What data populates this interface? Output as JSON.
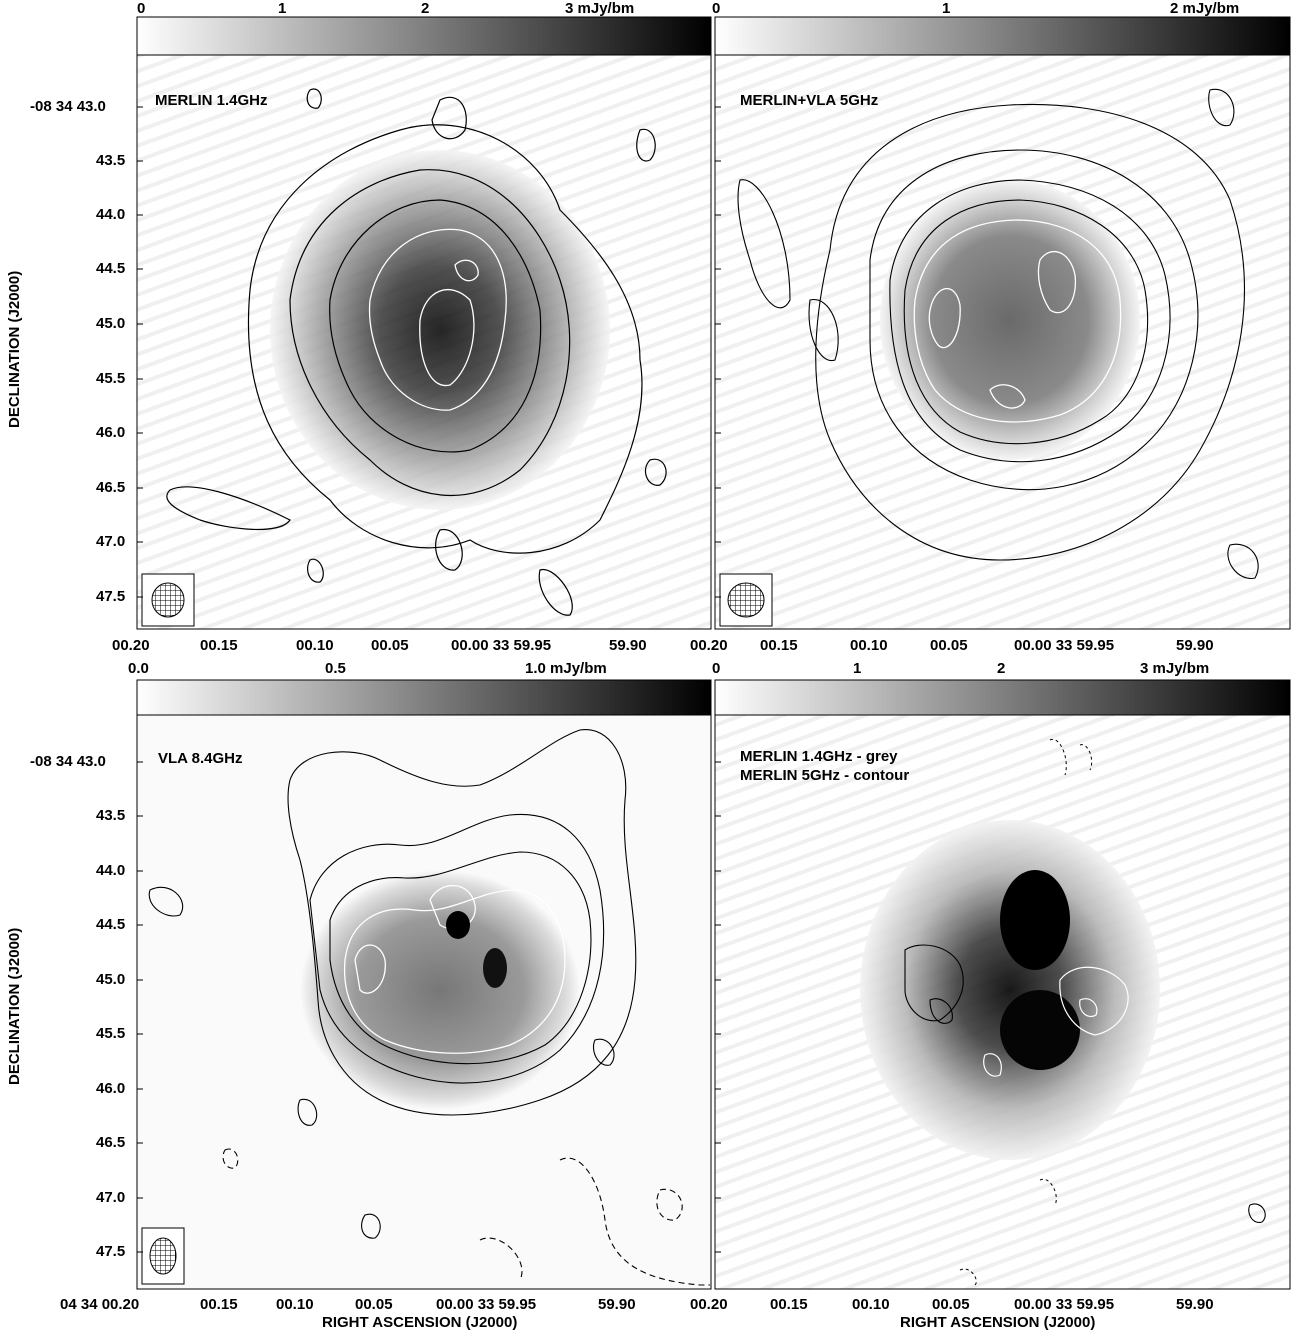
{
  "panels": [
    {
      "id": "tl",
      "title": "MERLIN 1.4GHz",
      "subtitle": "",
      "colorbar": {
        "labels": [
          "0",
          "1",
          "2",
          "3 mJy/bm"
        ]
      }
    },
    {
      "id": "tr",
      "title": "MERLIN+VLA 5GHz",
      "subtitle": "",
      "colorbar": {
        "labels": [
          "0",
          "1",
          "2 mJy/bm"
        ]
      }
    },
    {
      "id": "bl",
      "title": "VLA 8.4GHz",
      "subtitle": "",
      "colorbar": {
        "labels": [
          "0.0",
          "0.5",
          "1.0 mJy/bm"
        ]
      }
    },
    {
      "id": "br",
      "title": "MERLIN 1.4GHz - grey",
      "subtitle": "MERLIN 5GHz - contour",
      "colorbar": {
        "labels": [
          "0",
          "1",
          "2",
          "3 mJy/bm"
        ]
      }
    }
  ],
  "dec_ticks": [
    "-08 34 43.0",
    "43.5",
    "44.0",
    "44.5",
    "45.0",
    "45.5",
    "46.0",
    "46.5",
    "47.0",
    "47.5"
  ],
  "ra_ticks_left": [
    "00.20",
    "00.15",
    "00.10",
    "00.05",
    "00.00  33 59.95",
    "59.90"
  ],
  "ra_ticks_left_bottom": [
    "04 34 00.20",
    "00.15",
    "00.10",
    "00.05",
    "00.00  33 59.95",
    "59.90"
  ],
  "ra_ticks_right_top": [
    "00.20",
    "00.15",
    "00.10",
    "00.05",
    "00.00  33 59.95",
    "59.90"
  ],
  "ra_ticks_right_bottom": [
    "00.20",
    "00.15",
    "00.10",
    "00.05",
    "00.00  33 59.95",
    "59.90"
  ],
  "ylabel": "DECLINATION (J2000)",
  "xlabel": "RIGHT ASCENSION (J2000)",
  "colors": {
    "ink": "#000000",
    "bg": "#ffffff",
    "contour_white": "#ffffff"
  }
}
